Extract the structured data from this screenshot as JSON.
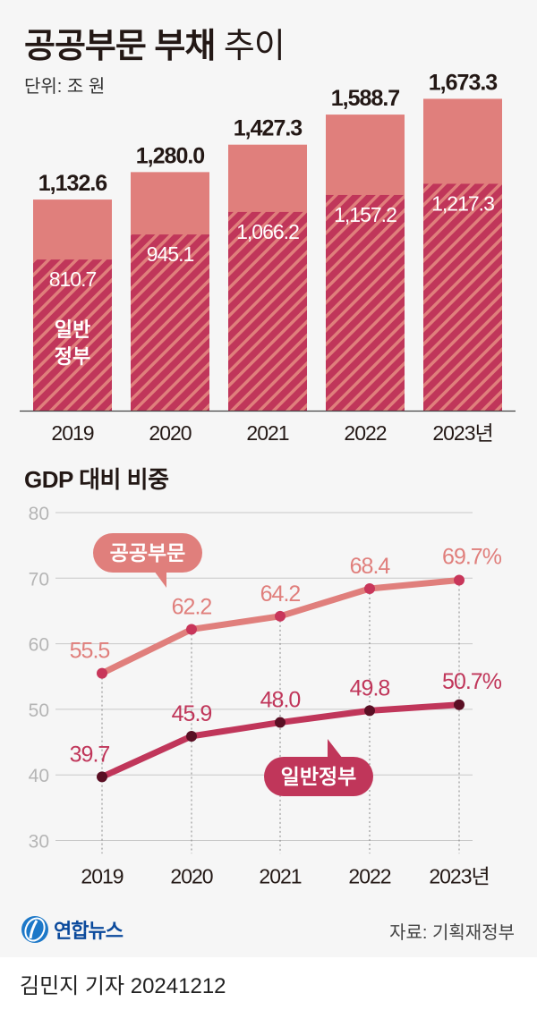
{
  "header": {
    "title_bold": "공공부문 부채",
    "title_light": "추이",
    "unit": "단위: 조 원",
    "section2_title": "GDP 대비 비중"
  },
  "colors": {
    "public_sector": "#e07f7c",
    "general_government": "#c0365a",
    "general_dot": "#5a0f24",
    "public_dot": "#c8365a",
    "gridline": "#c8c8c8",
    "text_dark": "#231815",
    "axis_text": "#b5b5b5"
  },
  "chart_data": [
    {
      "type": "bar",
      "title": "공공부문 부채 추이",
      "subtitle": "단위: 조 원",
      "categories": [
        "2019",
        "2020",
        "2021",
        "2022",
        "2023년"
      ],
      "series": [
        {
          "name": "공공부문",
          "values": [
            1132.6,
            1280.0,
            1427.3,
            1588.7,
            1673.3
          ],
          "labels": [
            "1,132.6",
            "1,280.0",
            "1,427.3",
            "1,588.7",
            "1,673.3"
          ]
        },
        {
          "name": "일반정부",
          "values": [
            810.7,
            945.1,
            1066.2,
            1157.2,
            1217.3
          ],
          "labels": [
            "810.7",
            "945.1",
            "1,066.2",
            "1,157.2",
            "1,217.3"
          ]
        }
      ],
      "inner_label": [
        "일반",
        "정부"
      ],
      "ylim": [
        0,
        1700
      ]
    },
    {
      "type": "line",
      "title": "GDP 대비 비중",
      "categories": [
        "2019",
        "2020",
        "2021",
        "2022",
        "2023년"
      ],
      "yticks": [
        80,
        70,
        60,
        50,
        40,
        30
      ],
      "ylim": [
        30,
        80
      ],
      "grid": true,
      "series": [
        {
          "name": "공공부문",
          "values": [
            55.5,
            62.2,
            64.2,
            68.4,
            69.7
          ],
          "labels": [
            "55.5",
            "62.2",
            "64.2",
            "68.4",
            "69.7%"
          ]
        },
        {
          "name": "일반정부",
          "values": [
            39.7,
            45.9,
            48.0,
            49.8,
            50.7
          ],
          "labels": [
            "39.7",
            "45.9",
            "48.0",
            "49.8",
            "50.7%"
          ]
        }
      ]
    }
  ],
  "footer": {
    "logo_text": "연합뉴스",
    "source": "자료: 기획재정부",
    "byline": "김민지 기자  20241212"
  }
}
